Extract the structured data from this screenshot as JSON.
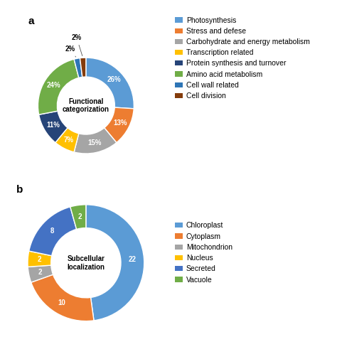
{
  "chart_data": [
    {
      "type": "pie",
      "title": "a",
      "annotations": [
        "Functional\ncategorization"
      ],
      "categories": [
        "Photosynthesis",
        "Stress and defese",
        "Carbohydrate and energy metabolism",
        "Transcription related",
        "Protein synthesis and turnover",
        "Amino acid metabolism",
        "Cell wall related",
        "Cell division"
      ],
      "values": [
        26,
        13,
        15,
        7,
        11,
        24,
        2,
        2
      ],
      "value_labels": [
        "26%",
        "13%",
        "15%",
        "7%",
        "11%",
        "24%",
        "2%",
        "2%"
      ],
      "colors": [
        "#5B9BD5",
        "#ED7D31",
        "#A5A5A5",
        "#FFC000",
        "#264478",
        "#70AD47",
        "#2E75B6",
        "#843C0C"
      ],
      "data_labels": true,
      "legend": "upper left"
    },
    {
      "type": "pie",
      "title": "b",
      "annotations": [
        "Subcellular\nlocalization"
      ],
      "categories": [
        "Chloroplast",
        "Cytoplasm",
        "Mitochondrion",
        "Nucleus",
        "Secreted",
        "Vacuole"
      ],
      "values": [
        22,
        10,
        2,
        2,
        8,
        2
      ],
      "colors": [
        "#5B9BD5",
        "#ED7D31",
        "#A5A5A5",
        "#FFC000",
        "#4472C4",
        "#70AD47"
      ],
      "data_labels": true,
      "legend": "center left"
    }
  ]
}
